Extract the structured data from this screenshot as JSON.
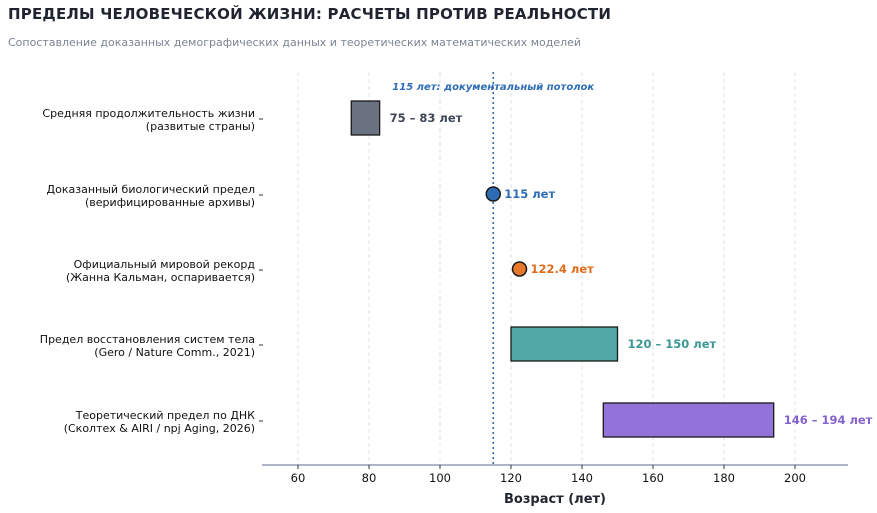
{
  "header": {
    "title": "ПРЕДЕЛЫ ЧЕЛОВЕЧЕСКОЙ ЖИЗНИ: РАСЧЕТЫ ПРОТИВ РЕАЛЬНОСТИ",
    "subtitle": "Сопоставление доказанных демографических данных и теоретических математических моделей"
  },
  "chart_data": {
    "type": "bar",
    "orientation": "horizontal-range",
    "xlabel": "Возраст (лет)",
    "xlim": [
      50,
      215
    ],
    "xticks": [
      60,
      80,
      100,
      120,
      140,
      160,
      180,
      200
    ],
    "grid": "vertical dashed",
    "reference_line": {
      "x": 115,
      "label": "115 лет: документальный потолок",
      "color": "#2e6db4"
    },
    "rows": [
      {
        "label1": "Средняя продолжительность жизни",
        "label2": "(развитые страны)",
        "kind": "range",
        "start": 75,
        "end": 83,
        "value_label": "75 – 83 лет",
        "fill": "#6a7282",
        "text_color": "#3d4656"
      },
      {
        "label1": "Доказанный биологический предел",
        "label2": "(верифицированные архивы)",
        "kind": "point",
        "value": 115,
        "value_label": "115 лет",
        "fill": "#2e6db4",
        "text_color": "#2e6db4"
      },
      {
        "label1": "Официальный мировой рекорд",
        "label2": "(Жанна Кальман, оспаривается)",
        "kind": "point",
        "value": 122.4,
        "value_label": "122.4 лет",
        "fill": "#e8792a",
        "text_color": "#e06b1a"
      },
      {
        "label1": "Предел восстановления систем тела",
        "label2": "(Gero / Nature Comm., 2021)",
        "kind": "range",
        "start": 120,
        "end": 150,
        "value_label": "120 – 150 лет",
        "fill": "#52a8a5",
        "text_color": "#3a9893"
      },
      {
        "label1": "Теоретический предел по ДНК",
        "label2": "(Сколтех & AIRI / npj Aging, 2026)",
        "kind": "range",
        "start": 146,
        "end": 194,
        "value_label": "146 – 194 лет",
        "fill": "#9373d9",
        "text_color": "#8461d0"
      }
    ]
  }
}
